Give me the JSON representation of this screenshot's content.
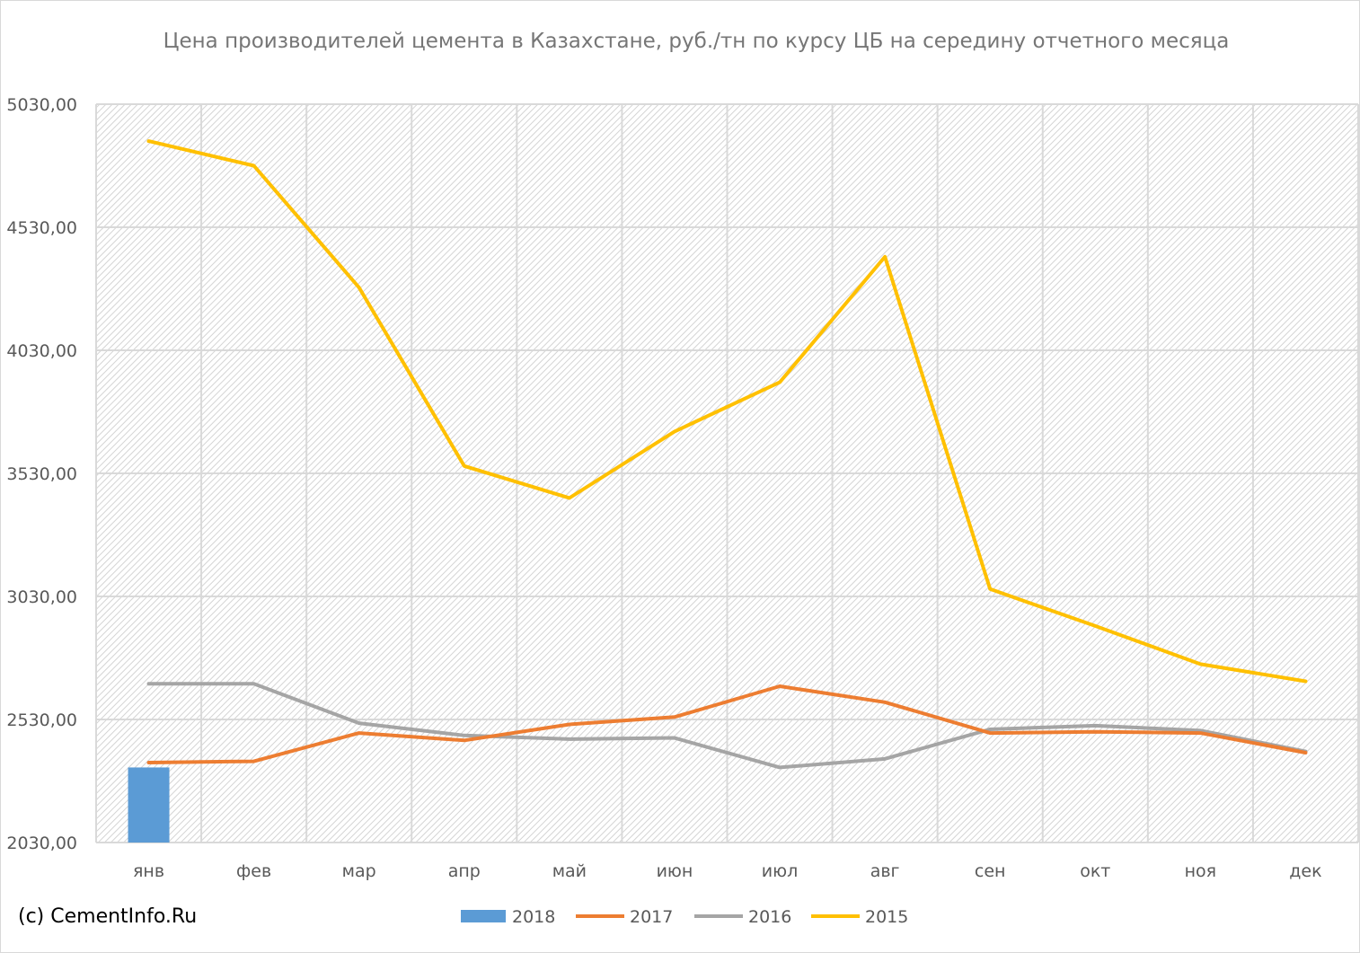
{
  "chart_data": {
    "type": "bar+line",
    "title": "Цена производителей цемента в Казахстане, руб./тн по курсу ЦБ на середину отчетного месяца",
    "categories": [
      "янв",
      "фев",
      "мар",
      "апр",
      "май",
      "июн",
      "июл",
      "авг",
      "сен",
      "окт",
      "ноя",
      "дек"
    ],
    "ylim": [
      2030,
      5030
    ],
    "yticks": [
      2030,
      2530,
      3030,
      3530,
      4030,
      4530,
      5030
    ],
    "ytick_labels": [
      "2030,00",
      "2530,00",
      "3030,00",
      "3530,00",
      "4030,00",
      "4530,00",
      "5030,00"
    ],
    "grid": true,
    "legend_position": "bottom",
    "series": [
      {
        "name": "2018",
        "kind": "bar",
        "color": "#5b9bd5",
        "values": [
          2335,
          null,
          null,
          null,
          null,
          null,
          null,
          null,
          null,
          null,
          null,
          null
        ]
      },
      {
        "name": "2017",
        "kind": "line",
        "color": "#ed7d31",
        "values": [
          2355,
          2360,
          2475,
          2445,
          2510,
          2540,
          2665,
          2600,
          2475,
          2480,
          2475,
          2395
        ]
      },
      {
        "name": "2016",
        "kind": "line",
        "color": "#a5a5a5",
        "values": [
          2675,
          2675,
          2515,
          2465,
          2450,
          2455,
          2335,
          2370,
          2490,
          2505,
          2485,
          2400
        ]
      },
      {
        "name": "2015",
        "kind": "line",
        "color": "#ffc000",
        "values": [
          4880,
          4780,
          4285,
          3560,
          3430,
          3700,
          3900,
          4410,
          3060,
          2910,
          2755,
          2685
        ]
      }
    ]
  },
  "copyright": "(c) CementInfo.Ru"
}
